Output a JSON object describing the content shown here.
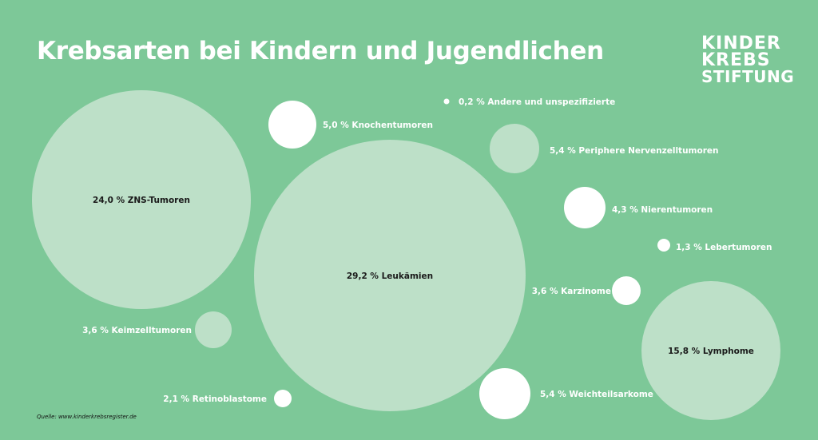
{
  "title": "Krebsarten bei Kindern und Jugendlichen",
  "logo": {
    "line1": "KINDER",
    "line2": "KREBS",
    "line3": "STIFTUNG"
  },
  "source": "Quelle: www.kinderkrebsregister.de",
  "colors": {
    "background": "#7dc898",
    "bubble_light": "#bde0c8",
    "bubble_white": "#ffffff",
    "label_dark": "#1a1a1a",
    "label_light": "#ffffff"
  },
  "chart_data": {
    "type": "bubble",
    "title": "Krebsarten bei Kindern und Jugendlichen",
    "unit": "%",
    "items": [
      {
        "label": "24,0 % ZNS-Tumoren",
        "value": 24.0
      },
      {
        "label": "29,2 % Leukämien",
        "value": 29.2
      },
      {
        "label": "15,8 % Lymphome",
        "value": 15.8
      },
      {
        "label": "5,0 % Knochentumoren",
        "value": 5.0
      },
      {
        "label": "0,2 % Andere und unspezifizierte",
        "value": 0.2
      },
      {
        "label": "5,4 % Periphere Nervenzelltumoren",
        "value": 5.4
      },
      {
        "label": "4,3 % Nierentumoren",
        "value": 4.3
      },
      {
        "label": "1,3 % Lebertumoren",
        "value": 1.3
      },
      {
        "label": "3,6 % Karzinome",
        "value": 3.6
      },
      {
        "label": "3,6 % Keimzelltumoren",
        "value": 3.6
      },
      {
        "label": "2,1 % Retinoblastome",
        "value": 2.1
      },
      {
        "label": "5,4 % Weichteilsarkome",
        "value": 5.4
      }
    ]
  }
}
